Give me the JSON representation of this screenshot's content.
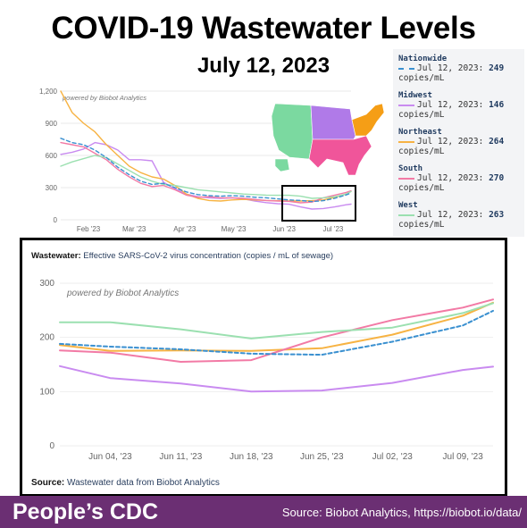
{
  "header": {
    "title": "COVID-19 Wastewater Levels",
    "subtitle": "July 12, 2023"
  },
  "legend": [
    {
      "name": "Nationwide",
      "date_text": "Jul 12, 2023:",
      "value": "249",
      "unit": "copies/mL",
      "color": "#3a90d0",
      "dashed": true
    },
    {
      "name": "Midwest",
      "date_text": "Jul 12, 2023:",
      "value": "146",
      "unit": "copies/mL",
      "color": "#c98bf0",
      "dashed": false
    },
    {
      "name": "Northeast",
      "date_text": "Jul 12, 2023:",
      "value": "264",
      "unit": "copies/mL",
      "color": "#f7b343",
      "dashed": false
    },
    {
      "name": "South",
      "date_text": "Jul 12, 2023:",
      "value": "270",
      "unit": "copies/mL",
      "color": "#f27aa5",
      "dashed": false
    },
    {
      "name": "West",
      "date_text": "Jul 12, 2023:",
      "value": "263",
      "unit": "copies/mL",
      "color": "#9be0b0",
      "dashed": false
    }
  ],
  "map_colors": {
    "west": "#7bd9a0",
    "midwest": "#b07ae8",
    "northeast": "#f59e16",
    "south": "#f0559a"
  },
  "chart_data": [
    {
      "type": "line",
      "watermark": "powered by Biobot Analytics",
      "x": [
        "2023-01-15",
        "2023-01-22",
        "2023-01-29",
        "2023-02-05",
        "2023-02-12",
        "2023-02-19",
        "2023-02-26",
        "2023-03-05",
        "2023-03-12",
        "2023-03-19",
        "2023-03-26",
        "2023-04-02",
        "2023-04-09",
        "2023-04-16",
        "2023-04-23",
        "2023-04-30",
        "2023-05-07",
        "2023-05-14",
        "2023-05-21",
        "2023-05-28",
        "2023-06-04",
        "2023-06-11",
        "2023-06-18",
        "2023-06-25",
        "2023-07-02",
        "2023-07-09",
        "2023-07-12"
      ],
      "xticks": [
        "Feb '23",
        "Mar '23",
        "Apr '23",
        "May '23",
        "Jun '23",
        "Jul '23"
      ],
      "xtick_dates": [
        "2023-02-01",
        "2023-03-01",
        "2023-04-01",
        "2023-05-01",
        "2023-06-01",
        "2023-07-01"
      ],
      "yticks": [
        "0",
        "300",
        "600",
        "900",
        "1,200"
      ],
      "ylim": [
        0,
        1200
      ],
      "series": [
        {
          "name": "Nationwide",
          "color": "#3a90d0",
          "dashed": true,
          "values": [
            760,
            720,
            700,
            650,
            580,
            490,
            420,
            360,
            330,
            340,
            300,
            260,
            235,
            225,
            220,
            225,
            220,
            210,
            205,
            195,
            185,
            180,
            170,
            178,
            200,
            232,
            249
          ]
        },
        {
          "name": "Midwest",
          "color": "#c98bf0",
          "dashed": false,
          "values": [
            610,
            630,
            660,
            720,
            700,
            650,
            560,
            560,
            550,
            350,
            290,
            240,
            215,
            205,
            200,
            205,
            195,
            175,
            160,
            150,
            145,
            120,
            100,
            105,
            120,
            140,
            146
          ]
        },
        {
          "name": "Northeast",
          "color": "#f7b343",
          "dashed": false,
          "values": [
            1200,
            1000,
            900,
            820,
            700,
            600,
            500,
            440,
            400,
            380,
            320,
            240,
            200,
            180,
            175,
            185,
            190,
            185,
            180,
            178,
            175,
            175,
            178,
            185,
            210,
            240,
            264
          ]
        },
        {
          "name": "South",
          "color": "#f27aa5",
          "dashed": false,
          "values": [
            720,
            700,
            680,
            620,
            560,
            470,
            400,
            340,
            310,
            320,
            280,
            230,
            210,
            215,
            205,
            205,
            200,
            190,
            180,
            175,
            172,
            158,
            165,
            205,
            230,
            255,
            270
          ]
        },
        {
          "name": "West",
          "color": "#9be0b0",
          "dashed": false,
          "values": [
            500,
            540,
            570,
            600,
            580,
            520,
            460,
            400,
            360,
            330,
            320,
            300,
            280,
            270,
            260,
            250,
            240,
            235,
            230,
            228,
            228,
            220,
            200,
            205,
            215,
            240,
            263
          ]
        }
      ]
    },
    {
      "type": "line",
      "title": "Effective SARS-CoV-2 virus concentration (copies / mL of sewage)",
      "title_prefix": "Wastewater:",
      "watermark": "powered by Biobot Analytics",
      "source_prefix": "Source:",
      "source_text": "Wastewater data from Biobot Analytics",
      "x": [
        "2023-05-30",
        "2023-06-04",
        "2023-06-11",
        "2023-06-18",
        "2023-06-25",
        "2023-07-02",
        "2023-07-09",
        "2023-07-12"
      ],
      "xticks": [
        "Jun 04, '23",
        "Jun 11, '23",
        "Jun 18, '23",
        "Jun 25, '23",
        "Jul 02, '23",
        "Jul 09, '23"
      ],
      "xtick_dates": [
        "2023-06-04",
        "2023-06-11",
        "2023-06-18",
        "2023-06-25",
        "2023-07-02",
        "2023-07-09"
      ],
      "yticks": [
        "0",
        "100",
        "200",
        "300"
      ],
      "ylim": [
        0,
        300
      ],
      "series": [
        {
          "name": "Nationwide",
          "color": "#3a90d0",
          "dashed": true,
          "values": [
            188,
            183,
            178,
            170,
            168,
            192,
            222,
            249
          ]
        },
        {
          "name": "Midwest",
          "color": "#c98bf0",
          "dashed": false,
          "values": [
            147,
            125,
            115,
            100,
            102,
            116,
            140,
            146
          ]
        },
        {
          "name": "Northeast",
          "color": "#f7b343",
          "dashed": false,
          "values": [
            186,
            175,
            176,
            175,
            180,
            205,
            240,
            264
          ]
        },
        {
          "name": "South",
          "color": "#f27aa5",
          "dashed": false,
          "values": [
            176,
            172,
            155,
            158,
            200,
            232,
            255,
            270
          ]
        },
        {
          "name": "West",
          "color": "#9be0b0",
          "dashed": false,
          "values": [
            228,
            228,
            215,
            198,
            210,
            218,
            245,
            263
          ]
        }
      ]
    }
  ],
  "footer": {
    "brand": "People’s CDC",
    "credit": "Source: Biobot Analytics, https://biobot.io/data/"
  }
}
